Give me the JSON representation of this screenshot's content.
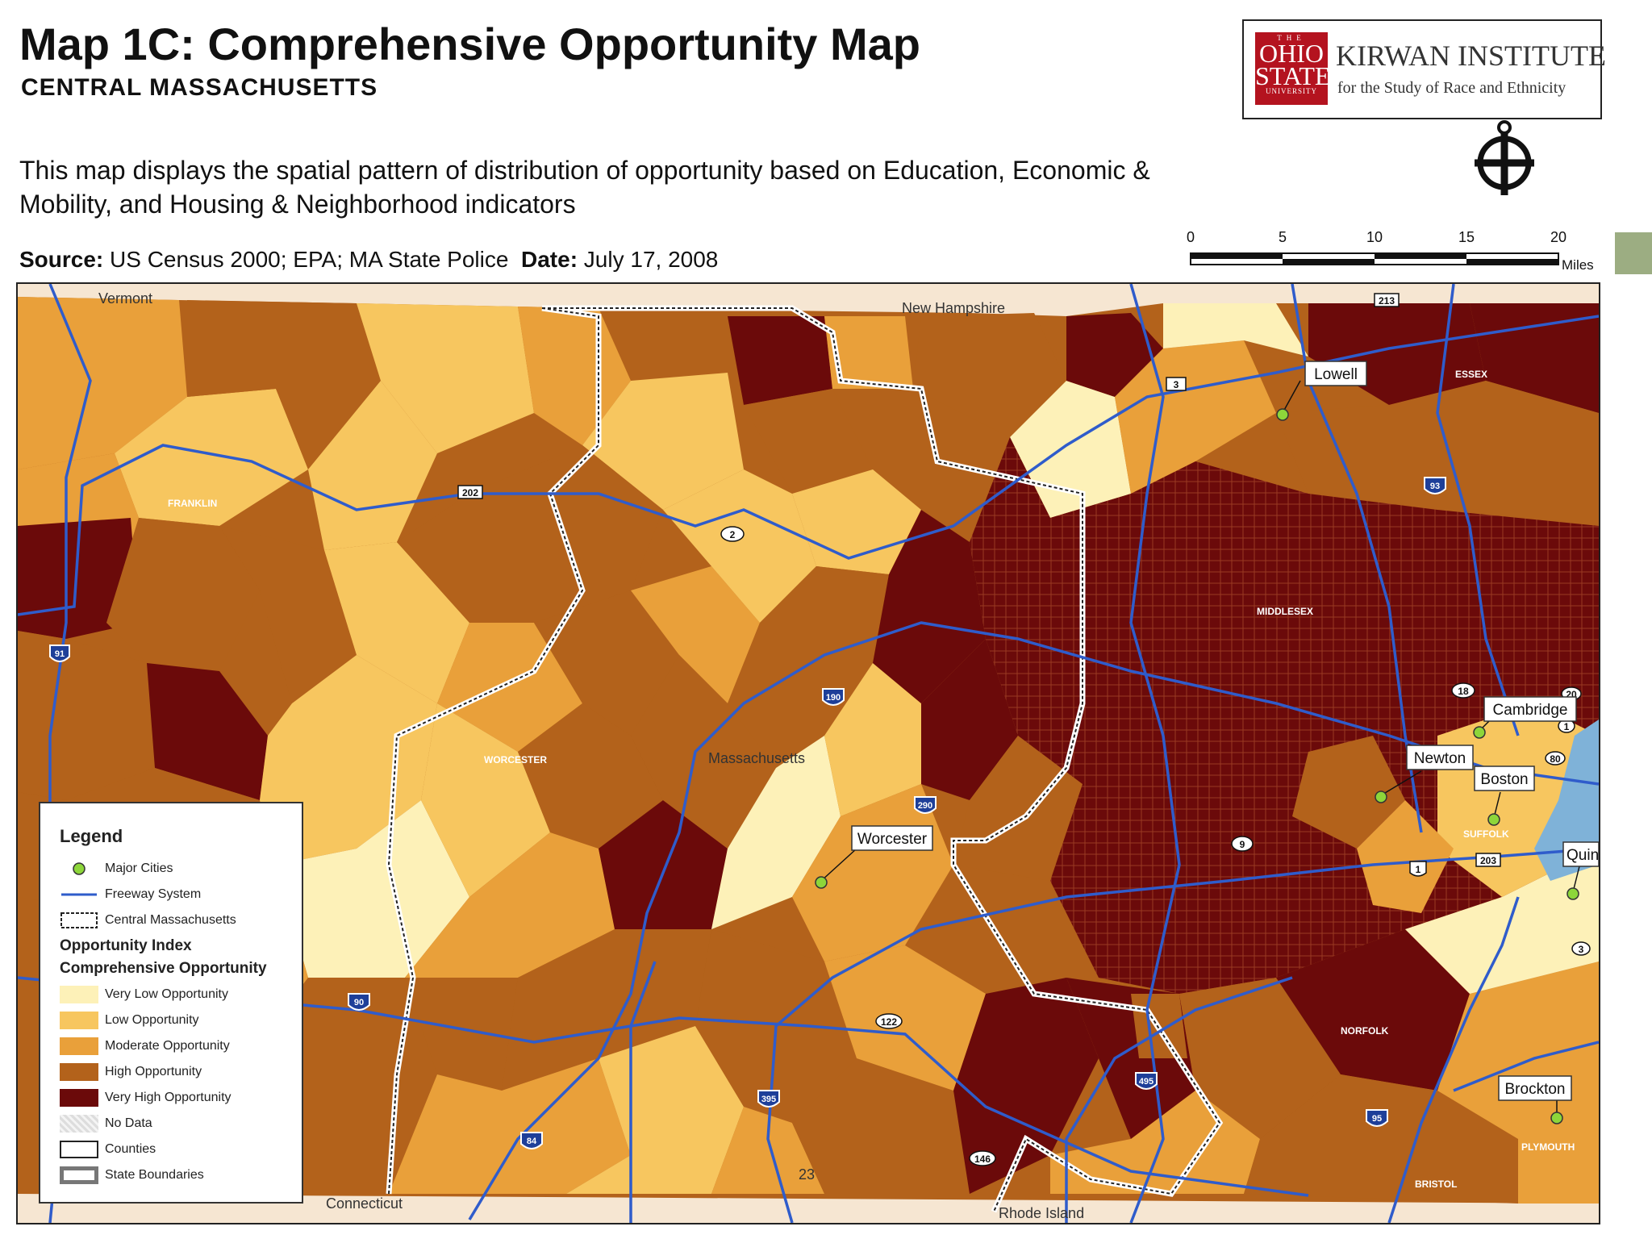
{
  "header": {
    "title": "Map 1C: Comprehensive Opportunity Map",
    "subtitle": "CENTRAL MASSACHUSETTS",
    "description": "This map displays the spatial pattern of distribution of opportunity based on Education, Economic & Mobility, and Housing & Neighborhood indicators",
    "source_label": "Source:",
    "source_value": "US Census 2000; EPA; MA State Police",
    "date_label": "Date:",
    "date_value": "July 17, 2008"
  },
  "logo": {
    "osu_top": "THE",
    "osu_ohio": "OHIO",
    "osu_state": "STATE",
    "osu_univ": "UNIVERSITY",
    "name": "KIRWAN INSTITUTE",
    "subtitle": "for the Study of Race and Ethnicity",
    "icon": "kirwan-emblem-icon"
  },
  "scalebar": {
    "ticks": [
      "0",
      "5",
      "10",
      "15",
      "20"
    ],
    "unit": "Miles"
  },
  "map": {
    "regions": {
      "vermont": "Vermont",
      "new_hampshire": "New Hampshire",
      "massachusetts": "Massachusetts",
      "connecticut": "Connecticut",
      "rhode_island": "Rhode Island",
      "stray_number": "23"
    },
    "counties": {
      "franklin": "FRANKLIN",
      "worcester": "WORCESTER",
      "middlesex": "MIDDLESEX",
      "essex": "ESSEX",
      "suffolk": "SUFFOLK",
      "norfolk": "NORFOLK",
      "plymouth": "PLYMOUTH",
      "bristol": "BRISTOL"
    },
    "cities": {
      "lowell": "Lowell",
      "cambridge": "Cambridge",
      "newton": "Newton",
      "boston": "Boston",
      "worcester": "Worcester",
      "quincy": "Quin",
      "brockton": "Brockton"
    },
    "interstates": {
      "i91": "91",
      "i190": "190",
      "i290": "290",
      "i90": "90",
      "i84": "84",
      "i395": "395",
      "i495": "495",
      "i95": "95",
      "i93": "93"
    },
    "routes": {
      "r202": "202",
      "r2": "2",
      "r3": "3",
      "r213": "213",
      "r18": "18",
      "r20": "20",
      "r1": "1",
      "r80": "80",
      "r9": "9",
      "r203": "203",
      "r122": "122",
      "r146": "146",
      "r3b": "3"
    }
  },
  "legend": {
    "title": "Legend",
    "major_cities": "Major Cities",
    "freeway": "Freeway System",
    "central_ma": "Central Massachusetts",
    "index_heading": "Opportunity Index",
    "index_subheading": "Comprehensive Opportunity",
    "classes": [
      {
        "label": "Very Low Opportunity",
        "color": "#fdf1b8"
      },
      {
        "label": "Low Opportunity",
        "color": "#f7c65f"
      },
      {
        "label": "Moderate Opportunity",
        "color": "#e9a03a"
      },
      {
        "label": "High Opportunity",
        "color": "#b3621b"
      },
      {
        "label": "Very High Opportunity",
        "color": "#6b0a0a"
      }
    ],
    "no_data": "No Data",
    "counties": "Counties",
    "state_boundaries": "State Boundaries"
  },
  "colors": {
    "freeway": "#2f5ccb",
    "city_marker": "#8dd63a",
    "background_outside": "#f6e6d2"
  }
}
